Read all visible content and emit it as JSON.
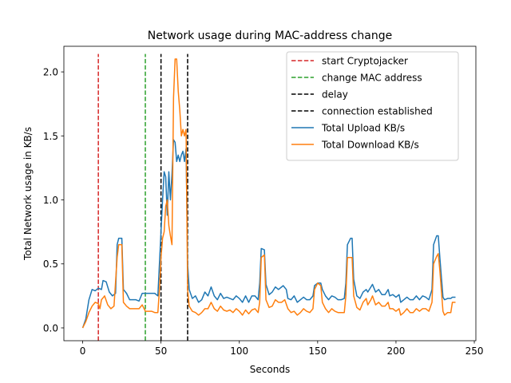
{
  "chart_data": {
    "type": "line",
    "title": "Network usage during MAC-address change",
    "xlabel": "Seconds",
    "ylabel": "Total Network usage in KB/s",
    "xlim": [
      -12,
      251
    ],
    "ylim": [
      -0.1,
      2.2
    ],
    "xticks": [
      0,
      50,
      100,
      150,
      200,
      250
    ],
    "yticks": [
      0.0,
      0.5,
      1.0,
      1.5,
      2.0
    ],
    "xtick_labels": [
      "0",
      "50",
      "100",
      "150",
      "200",
      "250"
    ],
    "ytick_labels": [
      "0.0",
      "0.5",
      "1.0",
      "1.5",
      "2.0"
    ],
    "grid": false,
    "legend_position": "top-right",
    "vlines": [
      {
        "name": "start Cryptojacker",
        "x": 10,
        "color": "#d62728"
      },
      {
        "name": "change MAC address",
        "x": 40,
        "color": "#2ca02c"
      },
      {
        "name": "delay",
        "x": 50,
        "color": "#000000"
      },
      {
        "name": "connection established",
        "x": 67,
        "color": "#000000"
      }
    ],
    "vline_top": 2.14,
    "series": [
      {
        "name": "Total Upload KB/s",
        "color": "#1f77b4",
        "points": [
          [
            0,
            0.0
          ],
          [
            2,
            0.07
          ],
          [
            4,
            0.22
          ],
          [
            6,
            0.3
          ],
          [
            8,
            0.29
          ],
          [
            10,
            0.31
          ],
          [
            12,
            0.3
          ],
          [
            13,
            0.37
          ],
          [
            15,
            0.36
          ],
          [
            17,
            0.28
          ],
          [
            19,
            0.25
          ],
          [
            21,
            0.27
          ],
          [
            22,
            0.65
          ],
          [
            23,
            0.7
          ],
          [
            25,
            0.7
          ],
          [
            26,
            0.3
          ],
          [
            28,
            0.27
          ],
          [
            30,
            0.22
          ],
          [
            32,
            0.22
          ],
          [
            34,
            0.22
          ],
          [
            36,
            0.21
          ],
          [
            38,
            0.27
          ],
          [
            40,
            0.27
          ],
          [
            42,
            0.27
          ],
          [
            44,
            0.27
          ],
          [
            46,
            0.27
          ],
          [
            48,
            0.25
          ],
          [
            49,
            0.5
          ],
          [
            50,
            0.75
          ],
          [
            51,
            1.0
          ],
          [
            52,
            1.22
          ],
          [
            53,
            1.18
          ],
          [
            54,
            0.88
          ],
          [
            55,
            1.22
          ],
          [
            56,
            1.0
          ],
          [
            57,
            1.2
          ],
          [
            58,
            1.47
          ],
          [
            59,
            1.45
          ],
          [
            60,
            1.3
          ],
          [
            61,
            1.35
          ],
          [
            62,
            1.3
          ],
          [
            63,
            1.35
          ],
          [
            64,
            1.38
          ],
          [
            65,
            1.3
          ],
          [
            66,
            1.4
          ],
          [
            67,
            0.5
          ],
          [
            68,
            0.3
          ],
          [
            70,
            0.23
          ],
          [
            72,
            0.25
          ],
          [
            74,
            0.2
          ],
          [
            76,
            0.22
          ],
          [
            78,
            0.28
          ],
          [
            80,
            0.25
          ],
          [
            82,
            0.32
          ],
          [
            84,
            0.25
          ],
          [
            86,
            0.22
          ],
          [
            88,
            0.27
          ],
          [
            90,
            0.23
          ],
          [
            92,
            0.24
          ],
          [
            94,
            0.23
          ],
          [
            96,
            0.22
          ],
          [
            98,
            0.25
          ],
          [
            100,
            0.23
          ],
          [
            102,
            0.2
          ],
          [
            104,
            0.25
          ],
          [
            106,
            0.2
          ],
          [
            108,
            0.25
          ],
          [
            110,
            0.25
          ],
          [
            112,
            0.22
          ],
          [
            113,
            0.35
          ],
          [
            114,
            0.62
          ],
          [
            116,
            0.61
          ],
          [
            117,
            0.34
          ],
          [
            119,
            0.26
          ],
          [
            121,
            0.28
          ],
          [
            123,
            0.32
          ],
          [
            125,
            0.3
          ],
          [
            127,
            0.32
          ],
          [
            128,
            0.33
          ],
          [
            130,
            0.3
          ],
          [
            131,
            0.23
          ],
          [
            133,
            0.22
          ],
          [
            135,
            0.25
          ],
          [
            137,
            0.2
          ],
          [
            139,
            0.22
          ],
          [
            141,
            0.24
          ],
          [
            143,
            0.22
          ],
          [
            145,
            0.22
          ],
          [
            147,
            0.25
          ],
          [
            148,
            0.33
          ],
          [
            150,
            0.35
          ],
          [
            152,
            0.35
          ],
          [
            153,
            0.3
          ],
          [
            155,
            0.25
          ],
          [
            157,
            0.22
          ],
          [
            159,
            0.25
          ],
          [
            161,
            0.24
          ],
          [
            163,
            0.22
          ],
          [
            165,
            0.22
          ],
          [
            167,
            0.23
          ],
          [
            168,
            0.35
          ],
          [
            169,
            0.65
          ],
          [
            171,
            0.7
          ],
          [
            172,
            0.7
          ],
          [
            173,
            0.38
          ],
          [
            175,
            0.25
          ],
          [
            177,
            0.23
          ],
          [
            179,
            0.28
          ],
          [
            181,
            0.3
          ],
          [
            182,
            0.28
          ],
          [
            184,
            0.32
          ],
          [
            185,
            0.34
          ],
          [
            187,
            0.28
          ],
          [
            189,
            0.3
          ],
          [
            191,
            0.26
          ],
          [
            193,
            0.26
          ],
          [
            195,
            0.3
          ],
          [
            196,
            0.25
          ],
          [
            198,
            0.26
          ],
          [
            200,
            0.24
          ],
          [
            202,
            0.26
          ],
          [
            203,
            0.2
          ],
          [
            205,
            0.22
          ],
          [
            207,
            0.24
          ],
          [
            209,
            0.22
          ],
          [
            211,
            0.22
          ],
          [
            213,
            0.25
          ],
          [
            215,
            0.22
          ],
          [
            217,
            0.25
          ],
          [
            219,
            0.24
          ],
          [
            221,
            0.22
          ],
          [
            223,
            0.3
          ],
          [
            224,
            0.65
          ],
          [
            226,
            0.72
          ],
          [
            227,
            0.72
          ],
          [
            228,
            0.55
          ],
          [
            230,
            0.24
          ],
          [
            231,
            0.22
          ],
          [
            233,
            0.23
          ],
          [
            235,
            0.23
          ],
          [
            236,
            0.24
          ],
          [
            238,
            0.24
          ]
        ]
      },
      {
        "name": "Total Download KB/s",
        "color": "#ff7f0e",
        "points": [
          [
            0,
            0.0
          ],
          [
            2,
            0.05
          ],
          [
            4,
            0.12
          ],
          [
            6,
            0.17
          ],
          [
            8,
            0.2
          ],
          [
            10,
            0.19
          ],
          [
            11,
            0.15
          ],
          [
            12,
            0.22
          ],
          [
            14,
            0.25
          ],
          [
            16,
            0.18
          ],
          [
            18,
            0.15
          ],
          [
            20,
            0.17
          ],
          [
            22,
            0.55
          ],
          [
            23,
            0.65
          ],
          [
            25,
            0.65
          ],
          [
            26,
            0.2
          ],
          [
            28,
            0.17
          ],
          [
            30,
            0.15
          ],
          [
            32,
            0.15
          ],
          [
            34,
            0.15
          ],
          [
            36,
            0.15
          ],
          [
            38,
            0.18
          ],
          [
            40,
            0.13
          ],
          [
            42,
            0.13
          ],
          [
            44,
            0.13
          ],
          [
            46,
            0.12
          ],
          [
            48,
            0.12
          ],
          [
            49,
            0.3
          ],
          [
            50,
            0.55
          ],
          [
            51,
            0.7
          ],
          [
            52,
            0.75
          ],
          [
            53,
            0.95
          ],
          [
            54,
            1.0
          ],
          [
            55,
            0.8
          ],
          [
            56,
            0.72
          ],
          [
            57,
            0.65
          ],
          [
            58,
            1.8
          ],
          [
            59,
            2.1
          ],
          [
            60,
            2.1
          ],
          [
            61,
            1.85
          ],
          [
            62,
            1.7
          ],
          [
            63,
            1.5
          ],
          [
            64,
            1.55
          ],
          [
            65,
            1.5
          ],
          [
            66,
            1.55
          ],
          [
            67,
            0.3
          ],
          [
            68,
            0.17
          ],
          [
            70,
            0.13
          ],
          [
            72,
            0.12
          ],
          [
            74,
            0.1
          ],
          [
            76,
            0.12
          ],
          [
            78,
            0.15
          ],
          [
            80,
            0.15
          ],
          [
            82,
            0.2
          ],
          [
            84,
            0.15
          ],
          [
            86,
            0.13
          ],
          [
            88,
            0.17
          ],
          [
            90,
            0.14
          ],
          [
            92,
            0.13
          ],
          [
            94,
            0.14
          ],
          [
            96,
            0.12
          ],
          [
            98,
            0.15
          ],
          [
            100,
            0.13
          ],
          [
            102,
            0.1
          ],
          [
            104,
            0.14
          ],
          [
            106,
            0.11
          ],
          [
            108,
            0.14
          ],
          [
            110,
            0.15
          ],
          [
            112,
            0.12
          ],
          [
            113,
            0.2
          ],
          [
            114,
            0.55
          ],
          [
            116,
            0.57
          ],
          [
            117,
            0.22
          ],
          [
            119,
            0.16
          ],
          [
            121,
            0.17
          ],
          [
            123,
            0.22
          ],
          [
            125,
            0.2
          ],
          [
            127,
            0.2
          ],
          [
            129,
            0.22
          ],
          [
            131,
            0.15
          ],
          [
            133,
            0.12
          ],
          [
            135,
            0.13
          ],
          [
            137,
            0.1
          ],
          [
            139,
            0.12
          ],
          [
            141,
            0.15
          ],
          [
            143,
            0.13
          ],
          [
            145,
            0.12
          ],
          [
            147,
            0.15
          ],
          [
            148,
            0.3
          ],
          [
            150,
            0.35
          ],
          [
            152,
            0.33
          ],
          [
            153,
            0.2
          ],
          [
            155,
            0.15
          ],
          [
            157,
            0.12
          ],
          [
            159,
            0.15
          ],
          [
            161,
            0.13
          ],
          [
            163,
            0.12
          ],
          [
            165,
            0.12
          ],
          [
            167,
            0.12
          ],
          [
            168,
            0.25
          ],
          [
            169,
            0.55
          ],
          [
            171,
            0.55
          ],
          [
            172,
            0.55
          ],
          [
            173,
            0.25
          ],
          [
            175,
            0.16
          ],
          [
            177,
            0.14
          ],
          [
            179,
            0.2
          ],
          [
            181,
            0.23
          ],
          [
            182,
            0.18
          ],
          [
            184,
            0.22
          ],
          [
            185,
            0.25
          ],
          [
            187,
            0.18
          ],
          [
            189,
            0.2
          ],
          [
            191,
            0.17
          ],
          [
            193,
            0.17
          ],
          [
            195,
            0.2
          ],
          [
            196,
            0.15
          ],
          [
            198,
            0.15
          ],
          [
            200,
            0.13
          ],
          [
            202,
            0.15
          ],
          [
            203,
            0.1
          ],
          [
            205,
            0.12
          ],
          [
            207,
            0.15
          ],
          [
            209,
            0.12
          ],
          [
            211,
            0.12
          ],
          [
            213,
            0.15
          ],
          [
            215,
            0.13
          ],
          [
            217,
            0.15
          ],
          [
            219,
            0.15
          ],
          [
            221,
            0.13
          ],
          [
            223,
            0.2
          ],
          [
            224,
            0.5
          ],
          [
            226,
            0.56
          ],
          [
            227,
            0.58
          ],
          [
            228,
            0.45
          ],
          [
            230,
            0.13
          ],
          [
            231,
            0.1
          ],
          [
            233,
            0.12
          ],
          [
            235,
            0.12
          ],
          [
            236,
            0.2
          ],
          [
            238,
            0.2
          ]
        ]
      }
    ]
  }
}
